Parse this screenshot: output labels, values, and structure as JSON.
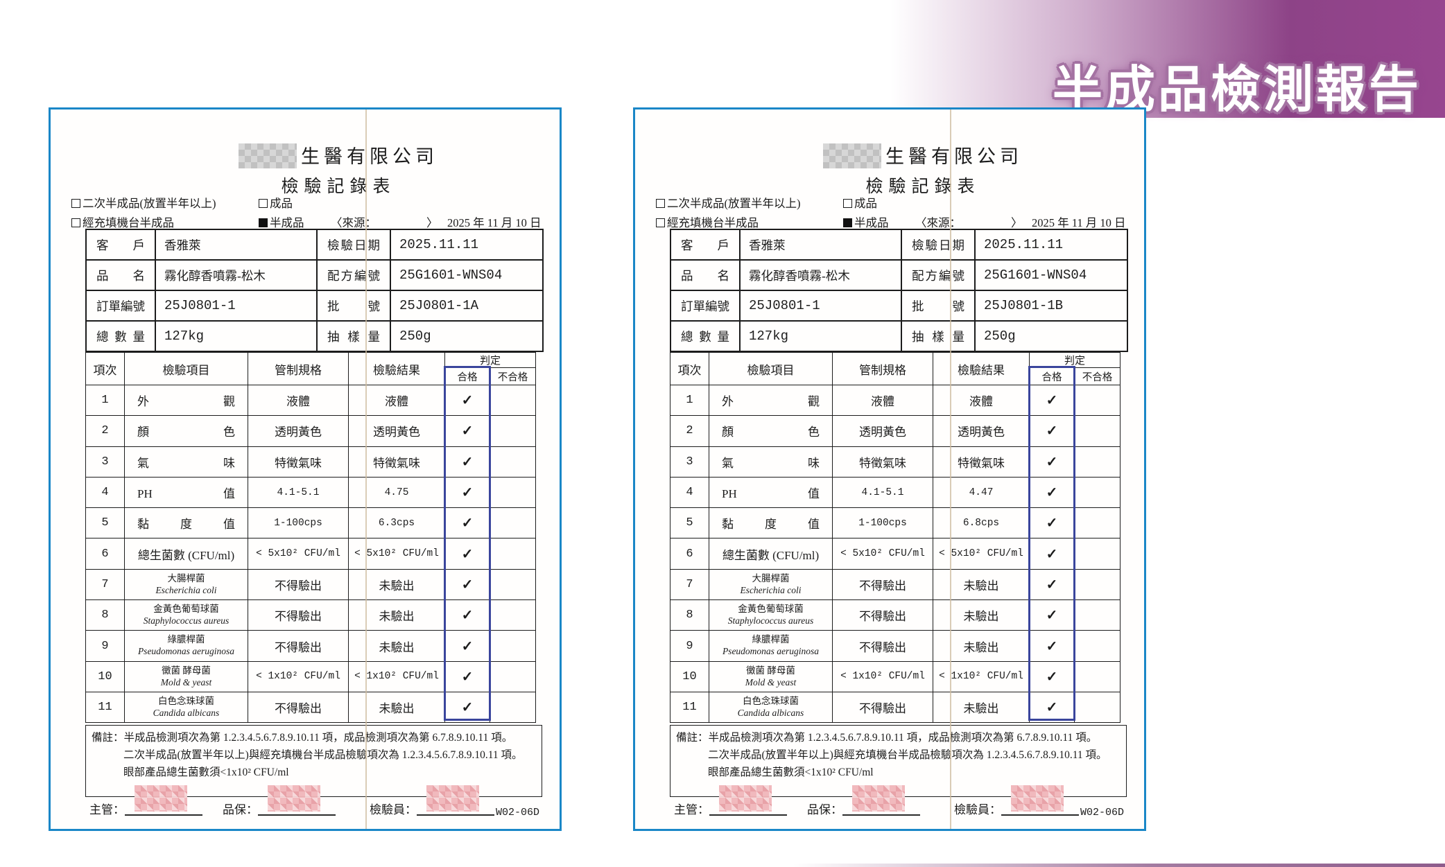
{
  "banner": {
    "title": "半成品檢測報告",
    "accent_color": "#8d4387"
  },
  "shared": {
    "th": {
      "no": "項次",
      "item": "檢驗項目",
      "spec": "管制規格",
      "result": "檢驗結果",
      "judge": "判定",
      "pass": "合格",
      "fail": "不合格"
    }
  },
  "pages": [
    {
      "company": "生醫有限公司",
      "form_title": "檢驗記錄表",
      "cb_secondary": "二次半成品(放置半年以上)",
      "cb_finished": "成品",
      "cb_machine": "經充填機台半成品",
      "cb_semi": "半成品",
      "source_open": "〈來源：",
      "source_close": "〉",
      "date_line": "2025 年 11 月 10 日",
      "info": {
        "customer_label": "客 戶",
        "customer": "香雅萊",
        "insp_date_label": "檢驗日期",
        "insp_date": "2025.11.11",
        "product_label": "品 名",
        "product": "霧化醇香噴霧-松木",
        "formula_label": "配方編號",
        "formula": "25G1601-WNS04",
        "order_label": "訂單編號",
        "order": "25J0801-1",
        "batch_label": "批 號",
        "batch": "25J0801-1A",
        "qty_label": "總 數 量",
        "qty": "127kg",
        "sample_label": "抽 樣 量",
        "sample": "250g"
      },
      "rows": [
        {
          "no": "1",
          "name": "外 觀",
          "justify": true,
          "spec": "液體",
          "result": "液體",
          "pass": "✓"
        },
        {
          "no": "2",
          "name": "顏 色",
          "justify": true,
          "spec": "透明黃色",
          "result": "透明黃色",
          "pass": "✓"
        },
        {
          "no": "3",
          "name": "氣 味",
          "justify": true,
          "spec": "特徵氣味",
          "result": "特徵氣味",
          "pass": "✓"
        },
        {
          "no": "4",
          "name": "PH 值",
          "justify": true,
          "spec": "4.1-5.1",
          "result": "4.75",
          "pass": "✓"
        },
        {
          "no": "5",
          "name": "黏 度 值",
          "justify": true,
          "spec": "1-100cps",
          "result": "6.3cps",
          "pass": "✓"
        },
        {
          "no": "6",
          "name": "總生菌數 (CFU/ml)",
          "justify": false,
          "spec": "< 5x10² CFU/ml",
          "result": "< 5x10² CFU/ml",
          "pass": "✓"
        },
        {
          "no": "7",
          "name": "大腸桿菌",
          "name_en": "Escherichia coli",
          "spec": "不得驗出",
          "result": "未驗出",
          "pass": "✓"
        },
        {
          "no": "8",
          "name": "金黃色葡萄球菌",
          "name_en": "Staphylococcus aureus",
          "spec": "不得驗出",
          "result": "未驗出",
          "pass": "✓"
        },
        {
          "no": "9",
          "name": "綠膿桿菌",
          "name_en": "Pseudomonas aeruginosa",
          "spec": "不得驗出",
          "result": "未驗出",
          "pass": "✓"
        },
        {
          "no": "10",
          "name": "黴菌 酵母菌",
          "name_en": "Mold & yeast",
          "spec": "< 1x10² CFU/ml",
          "result": "< 1x10² CFU/ml",
          "pass": "✓"
        },
        {
          "no": "11",
          "name": "白色念珠球菌",
          "name_en": "Candida albicans",
          "spec": "不得驗出",
          "result": "未驗出",
          "pass": "✓"
        }
      ],
      "notes": [
        "備註：半成品檢測項次為第 1.2.3.4.5.6.7.8.9.10.11 項，成品檢測項次為第 6.7.8.9.10.11 項。",
        "二次半成品(放置半年以上)與經充填機台半成品檢驗項次為 1.2.3.4.5.6.7.8.9.10.11 項。",
        "眼部產品總生菌數須<1x10² CFU/ml"
      ],
      "sign": {
        "supervisor": "主管：",
        "qa": "品保：",
        "inspector": "檢驗員："
      },
      "form_code": "W02-06D"
    },
    {
      "company": "生醫有限公司",
      "form_title": "檢驗記錄表",
      "cb_secondary": "二次半成品(放置半年以上)",
      "cb_finished": "成品",
      "cb_machine": "經充填機台半成品",
      "cb_semi": "半成品",
      "source_open": "〈來源：",
      "source_close": "〉",
      "date_line": "2025 年 11 月 10 日",
      "info": {
        "customer_label": "客 戶",
        "customer": "香雅萊",
        "insp_date_label": "檢驗日期",
        "insp_date": "2025.11.11",
        "product_label": "品 名",
        "product": "霧化醇香噴霧-松木",
        "formula_label": "配方編號",
        "formula": "25G1601-WNS04",
        "order_label": "訂單編號",
        "order": "25J0801-1",
        "batch_label": "批 號",
        "batch": "25J0801-1B",
        "qty_label": "總 數 量",
        "qty": "127kg",
        "sample_label": "抽 樣 量",
        "sample": "250g"
      },
      "rows": [
        {
          "no": "1",
          "name": "外 觀",
          "justify": true,
          "spec": "液體",
          "result": "液體",
          "pass": "✓"
        },
        {
          "no": "2",
          "name": "顏 色",
          "justify": true,
          "spec": "透明黃色",
          "result": "透明黃色",
          "pass": "✓"
        },
        {
          "no": "3",
          "name": "氣 味",
          "justify": true,
          "spec": "特徵氣味",
          "result": "特徵氣味",
          "pass": "✓"
        },
        {
          "no": "4",
          "name": "PH 值",
          "justify": true,
          "spec": "4.1-5.1",
          "result": "4.47",
          "pass": "✓"
        },
        {
          "no": "5",
          "name": "黏 度 值",
          "justify": true,
          "spec": "1-100cps",
          "result": "6.8cps",
          "pass": "✓"
        },
        {
          "no": "6",
          "name": "總生菌數 (CFU/ml)",
          "justify": false,
          "spec": "< 5x10² CFU/ml",
          "result": "< 5x10² CFU/ml",
          "pass": "✓"
        },
        {
          "no": "7",
          "name": "大腸桿菌",
          "name_en": "Escherichia coli",
          "spec": "不得驗出",
          "result": "未驗出",
          "pass": "✓"
        },
        {
          "no": "8",
          "name": "金黃色葡萄球菌",
          "name_en": "Staphylococcus aureus",
          "spec": "不得驗出",
          "result": "未驗出",
          "pass": "✓"
        },
        {
          "no": "9",
          "name": "綠膿桿菌",
          "name_en": "Pseudomonas aeruginosa",
          "spec": "不得驗出",
          "result": "未驗出",
          "pass": "✓"
        },
        {
          "no": "10",
          "name": "黴菌 酵母菌",
          "name_en": "Mold & yeast",
          "spec": "< 1x10² CFU/ml",
          "result": "< 1x10² CFU/ml",
          "pass": "✓"
        },
        {
          "no": "11",
          "name": "白色念珠球菌",
          "name_en": "Candida albicans",
          "spec": "不得驗出",
          "result": "未驗出",
          "pass": "✓"
        }
      ],
      "notes": [
        "備註：半成品檢測項次為第 1.2.3.4.5.6.7.8.9.10.11 項，成品檢測項次為第 6.7.8.9.10.11 項。",
        "二次半成品(放置半年以上)與經充填機台半成品檢驗項次為 1.2.3.4.5.6.7.8.9.10.11 項。",
        "眼部產品總生菌數須<1x10² CFU/ml"
      ],
      "sign": {
        "supervisor": "主管：",
        "qa": "品保：",
        "inspector": "檢驗員："
      },
      "form_code": "W02-06D"
    }
  ]
}
